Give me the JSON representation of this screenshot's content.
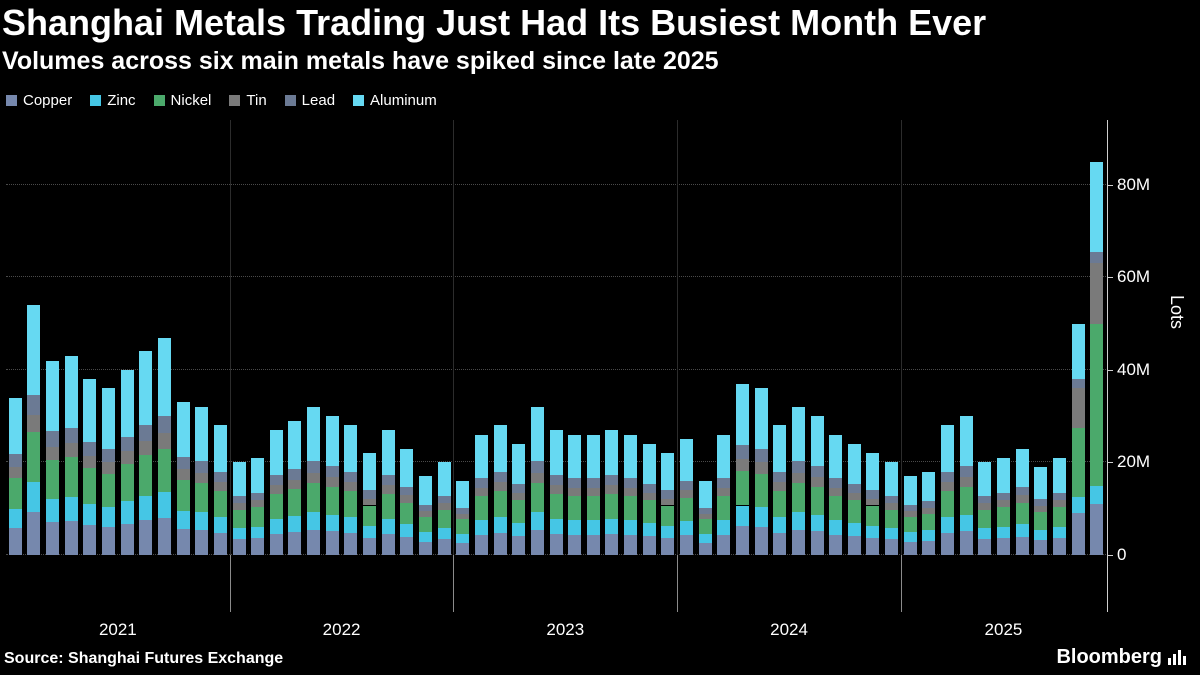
{
  "chart_data": {
    "type": "bar",
    "stacked": true,
    "title": "Shanghai Metals Trading Just Had Its Busiest Month Ever",
    "subtitle": "Volumes across six main metals have spiked since late 2025",
    "xlabel": "",
    "ylabel": "Lots",
    "ylim": [
      0,
      94
    ],
    "grid": true,
    "legend_position": "top-left",
    "yticks": [
      {
        "value": 0,
        "label": "0"
      },
      {
        "value": 20,
        "label": "20M"
      },
      {
        "value": 40,
        "label": "40M"
      },
      {
        "value": 60,
        "label": "60M"
      },
      {
        "value": 80,
        "label": "80M"
      }
    ],
    "year_labels": [
      "2021",
      "2022",
      "2023",
      "2024",
      "2025"
    ],
    "categories": [
      "2021-01",
      "2021-02",
      "2021-03",
      "2021-04",
      "2021-05",
      "2021-06",
      "2021-07",
      "2021-08",
      "2021-09",
      "2021-10",
      "2021-11",
      "2021-12",
      "2022-01",
      "2022-02",
      "2022-03",
      "2022-04",
      "2022-05",
      "2022-06",
      "2022-07",
      "2022-08",
      "2022-09",
      "2022-10",
      "2022-11",
      "2022-12",
      "2023-01",
      "2023-02",
      "2023-03",
      "2023-04",
      "2023-05",
      "2023-06",
      "2023-07",
      "2023-08",
      "2023-09",
      "2023-10",
      "2023-11",
      "2023-12",
      "2024-01",
      "2024-02",
      "2024-03",
      "2024-04",
      "2024-05",
      "2024-06",
      "2024-07",
      "2024-08",
      "2024-09",
      "2024-10",
      "2024-11",
      "2024-12",
      "2025-01",
      "2025-02",
      "2025-03",
      "2025-04",
      "2025-05",
      "2025-06",
      "2025-07",
      "2025-08",
      "2025-09",
      "2025-10",
      "2025-11"
    ],
    "series": [
      {
        "name": "Copper",
        "color": "#7688ad",
        "values": [
          5.8,
          9.2,
          7.1,
          7.3,
          6.5,
          6.1,
          6.8,
          7.5,
          8.0,
          5.6,
          5.4,
          4.8,
          3.4,
          3.6,
          4.6,
          4.9,
          5.4,
          5.1,
          4.8,
          3.7,
          4.6,
          3.9,
          2.9,
          3.4,
          2.7,
          4.4,
          4.8,
          4.1,
          5.4,
          4.6,
          4.4,
          4.4,
          4.6,
          4.4,
          4.1,
          3.7,
          4.3,
          2.7,
          4.4,
          6.3,
          6.1,
          4.8,
          5.4,
          5.1,
          4.4,
          4.1,
          3.7,
          3.4,
          2.9,
          3.1,
          4.8,
          5.1,
          3.4,
          3.6,
          3.9,
          3.2,
          3.6,
          9.0,
          11.0
        ]
      },
      {
        "name": "Zinc",
        "color": "#45c6e5",
        "values": [
          4.1,
          6.5,
          5.0,
          5.2,
          4.6,
          4.3,
          4.8,
          5.3,
          5.6,
          4.0,
          3.8,
          3.4,
          2.4,
          2.5,
          3.2,
          3.5,
          3.8,
          3.6,
          3.4,
          2.6,
          3.2,
          2.8,
          2.0,
          2.4,
          1.9,
          3.1,
          3.4,
          2.9,
          3.8,
          3.2,
          3.1,
          3.1,
          3.2,
          3.1,
          2.9,
          2.6,
          3.0,
          1.9,
          3.1,
          4.4,
          4.3,
          3.4,
          3.8,
          3.6,
          3.1,
          2.9,
          2.6,
          2.4,
          2.0,
          2.2,
          3.4,
          3.6,
          2.4,
          2.5,
          2.8,
          2.3,
          2.5,
          3.5,
          4.0
        ]
      },
      {
        "name": "Nickel",
        "color": "#4ba96b",
        "values": [
          6.8,
          10.8,
          8.4,
          8.6,
          7.6,
          7.2,
          8.0,
          8.8,
          9.4,
          6.6,
          6.4,
          5.6,
          4.0,
          4.2,
          5.4,
          5.8,
          6.4,
          6.0,
          5.6,
          4.4,
          5.4,
          4.6,
          3.4,
          4.0,
          3.2,
          5.2,
          5.6,
          4.8,
          6.4,
          5.4,
          5.2,
          5.2,
          5.4,
          5.2,
          4.8,
          4.4,
          5.0,
          3.2,
          5.2,
          7.4,
          7.2,
          5.6,
          6.4,
          6.0,
          5.2,
          4.8,
          4.4,
          4.0,
          3.4,
          3.6,
          5.6,
          6.0,
          4.0,
          4.2,
          4.6,
          3.8,
          4.2,
          15.0,
          35.0
        ]
      },
      {
        "name": "Tin",
        "color": "#7a7a7a",
        "values": [
          2.4,
          3.8,
          2.9,
          3.0,
          2.7,
          2.5,
          2.8,
          3.1,
          3.3,
          2.3,
          2.2,
          2.0,
          1.4,
          1.5,
          1.9,
          2.0,
          2.2,
          2.1,
          2.0,
          1.5,
          1.9,
          1.6,
          1.2,
          1.4,
          1.1,
          1.8,
          2.0,
          1.7,
          2.2,
          1.9,
          1.8,
          1.8,
          1.9,
          1.8,
          1.7,
          1.5,
          1.8,
          1.1,
          1.8,
          2.6,
          2.5,
          2.0,
          2.2,
          2.1,
          1.8,
          1.7,
          1.5,
          1.4,
          1.2,
          1.3,
          2.0,
          2.1,
          1.4,
          1.5,
          1.6,
          1.3,
          1.5,
          8.5,
          13.0
        ]
      },
      {
        "name": "Lead",
        "color": "#6b7a94",
        "values": [
          2.7,
          4.3,
          3.4,
          3.4,
          3.0,
          2.9,
          3.2,
          3.5,
          3.8,
          2.6,
          2.6,
          2.2,
          1.6,
          1.7,
          2.2,
          2.3,
          2.6,
          2.4,
          2.2,
          1.8,
          2.2,
          1.8,
          1.4,
          1.6,
          1.3,
          2.1,
          2.2,
          1.9,
          2.6,
          2.2,
          2.1,
          2.1,
          2.2,
          2.1,
          1.9,
          1.8,
          2.0,
          1.3,
          2.1,
          3.0,
          2.9,
          2.2,
          2.6,
          2.4,
          2.1,
          1.9,
          1.8,
          1.6,
          1.4,
          1.4,
          2.2,
          2.4,
          1.6,
          1.7,
          1.8,
          1.5,
          1.7,
          2.0,
          2.5
        ]
      },
      {
        "name": "Aluminum",
        "color": "#66d9f2",
        "values": [
          12.2,
          19.4,
          15.2,
          15.5,
          13.6,
          13.0,
          14.4,
          15.8,
          16.9,
          11.9,
          11.6,
          10.0,
          7.2,
          7.5,
          9.7,
          10.5,
          11.6,
          10.8,
          10.0,
          8.0,
          9.7,
          8.3,
          6.1,
          7.2,
          5.8,
          9.4,
          10.0,
          8.6,
          11.6,
          9.7,
          9.4,
          9.4,
          9.7,
          9.4,
          8.6,
          8.0,
          8.9,
          5.8,
          9.4,
          13.3,
          13.0,
          10.0,
          11.6,
          10.8,
          9.4,
          8.6,
          8.0,
          7.2,
          6.1,
          6.4,
          10.0,
          10.8,
          7.2,
          7.5,
          8.3,
          6.9,
          7.5,
          12.0,
          19.5
        ]
      }
    ]
  },
  "footer": {
    "source": "Source: Shanghai Futures Exchange",
    "brand": "Bloomberg"
  }
}
